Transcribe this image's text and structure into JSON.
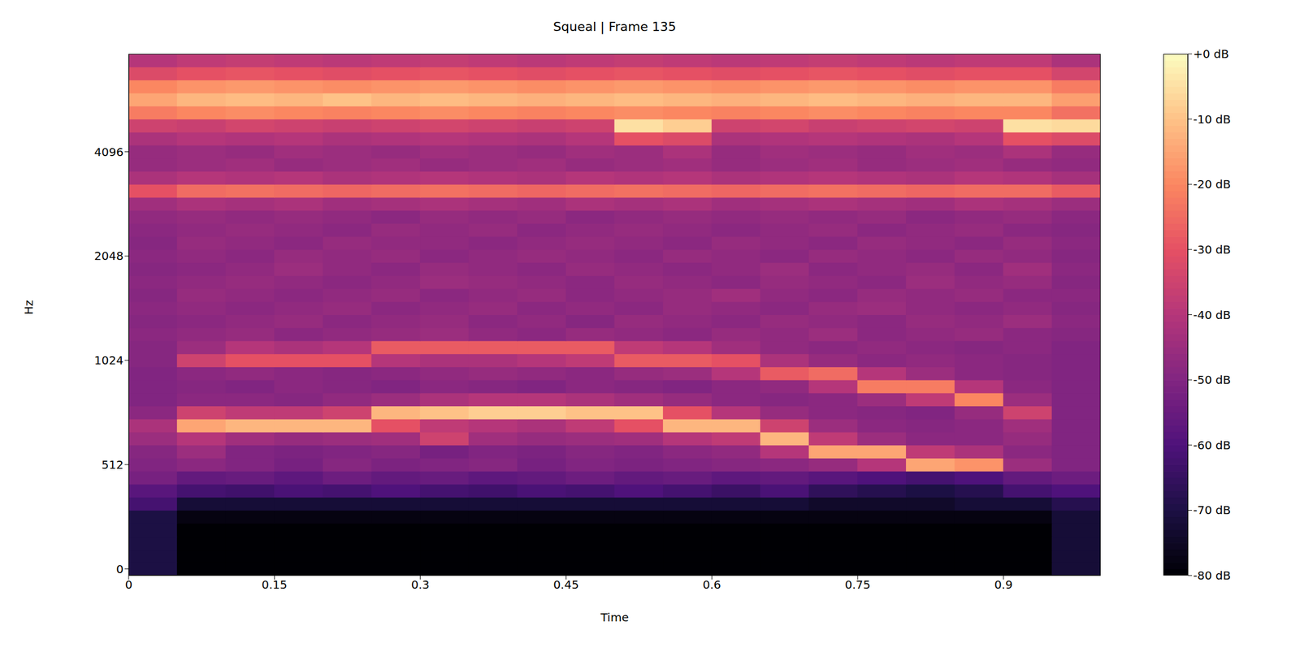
{
  "chart_data": {
    "type": "heatmap",
    "title": "Squeal | Frame 135",
    "x_label": "Time",
    "y_label": "Hz",
    "x": [
      0.025,
      0.075,
      0.125,
      0.175,
      0.225,
      0.275,
      0.325,
      0.375,
      0.425,
      0.475,
      0.525,
      0.575,
      0.625,
      0.675,
      0.725,
      0.775,
      0.825,
      0.875,
      0.925,
      0.975
    ],
    "xlim": [
      0,
      1.0
    ],
    "xticks": [
      0,
      0.15,
      0.3,
      0.45,
      0.6,
      0.75,
      0.9
    ],
    "y_categories": [
      "0",
      null,
      null,
      null,
      null,
      null,
      null,
      null,
      "512",
      null,
      null,
      null,
      null,
      null,
      null,
      null,
      "1024",
      null,
      null,
      null,
      null,
      null,
      null,
      null,
      "2048",
      null,
      null,
      null,
      null,
      null,
      null,
      null,
      "4096",
      null,
      null,
      null,
      null,
      null,
      null,
      null
    ],
    "cells": [
      [
        -70,
        -80,
        -80,
        -80,
        -80,
        -80,
        -80,
        -80,
        -80,
        -80,
        -80,
        -80,
        -80,
        -80,
        -80,
        -80,
        -80,
        -80,
        -80,
        -72
      ],
      [
        -70,
        -80,
        -80,
        -80,
        -80,
        -80,
        -80,
        -80,
        -80,
        -80,
        -80,
        -80,
        -80,
        -80,
        -80,
        -80,
        -80,
        -80,
        -80,
        -72
      ],
      [
        -70,
        -80,
        -80,
        -80,
        -80,
        -80,
        -80,
        -80,
        -80,
        -80,
        -80,
        -80,
        -80,
        -80,
        -80,
        -80,
        -80,
        -80,
        -80,
        -72
      ],
      [
        -70,
        -80,
        -80,
        -80,
        -80,
        -80,
        -80,
        -80,
        -80,
        -80,
        -80,
        -80,
        -80,
        -80,
        -80,
        -80,
        -80,
        -80,
        -80,
        -72
      ],
      [
        -70,
        -78,
        -78,
        -78,
        -78,
        -78,
        -78,
        -78,
        -78,
        -78,
        -78,
        -78,
        -78,
        -78,
        -78,
        -78,
        -78,
        -78,
        -78,
        -72
      ],
      [
        -62,
        -72,
        -72,
        -72,
        -72,
        -72,
        -72,
        -72,
        -72,
        -72,
        -72,
        -72,
        -72,
        -72,
        -74,
        -74,
        -74,
        -72,
        -72,
        -68
      ],
      [
        -58,
        -62,
        -63,
        -61,
        -62,
        -60,
        -62,
        -63,
        -61,
        -62,
        -60,
        -62,
        -64,
        -61,
        -66,
        -68,
        -70,
        -68,
        -62,
        -60
      ],
      [
        -52,
        -56,
        -55,
        -57,
        -54,
        -56,
        -55,
        -57,
        -56,
        -54,
        -56,
        -55,
        -57,
        -56,
        -58,
        -60,
        -62,
        -60,
        -56,
        -54
      ],
      [
        -50,
        -48,
        -50,
        -52,
        -49,
        -51,
        -50,
        -49,
        -52,
        -50,
        -51,
        -50,
        -49,
        -48,
        -46,
        -40,
        -15,
        -18,
        -45,
        -50
      ],
      [
        -49,
        -45,
        -50,
        -51,
        -50,
        -49,
        -52,
        -50,
        -51,
        -49,
        -50,
        -48,
        -47,
        -40,
        -15,
        -15,
        -38,
        -42,
        -48,
        -50
      ],
      [
        -45,
        -40,
        -44,
        -46,
        -45,
        -44,
        -35,
        -44,
        -46,
        -45,
        -44,
        -40,
        -38,
        -12,
        -38,
        -45,
        -48,
        -48,
        -46,
        -50
      ],
      [
        -42,
        -15,
        -12,
        -12,
        -12,
        -30,
        -38,
        -40,
        -42,
        -38,
        -30,
        -12,
        -12,
        -35,
        -45,
        -48,
        -49,
        -48,
        -44,
        -50
      ],
      [
        -48,
        -35,
        -38,
        -38,
        -35,
        -12,
        -10,
        -8,
        -8,
        -10,
        -10,
        -30,
        -40,
        -46,
        -48,
        -49,
        -50,
        -46,
        -35,
        -50
      ],
      [
        -50,
        -48,
        -48,
        -49,
        -47,
        -45,
        -42,
        -40,
        -40,
        -42,
        -44,
        -46,
        -48,
        -49,
        -48,
        -45,
        -38,
        -20,
        -45,
        -50
      ],
      [
        -50,
        -49,
        -50,
        -48,
        -49,
        -50,
        -48,
        -49,
        -50,
        -48,
        -49,
        -50,
        -48,
        -47,
        -40,
        -22,
        -22,
        -40,
        -48,
        -50
      ],
      [
        -50,
        -48,
        -47,
        -48,
        -49,
        -48,
        -47,
        -46,
        -47,
        -48,
        -46,
        -45,
        -40,
        -28,
        -25,
        -40,
        -45,
        -48,
        -49,
        -50
      ],
      [
        -49,
        -35,
        -30,
        -30,
        -30,
        -40,
        -42,
        -42,
        -40,
        -38,
        -28,
        -28,
        -30,
        -42,
        -46,
        -48,
        -47,
        -48,
        -49,
        -50
      ],
      [
        -49,
        -45,
        -40,
        -42,
        -40,
        -28,
        -28,
        -28,
        -28,
        -28,
        -38,
        -40,
        -44,
        -47,
        -48,
        -47,
        -48,
        -49,
        -48,
        -50
      ],
      [
        -48,
        -47,
        -46,
        -48,
        -47,
        -46,
        -45,
        -47,
        -48,
        -46,
        -47,
        -48,
        -46,
        -47,
        -45,
        -48,
        -47,
        -46,
        -48,
        -49
      ],
      [
        -49,
        -48,
        -47,
        -46,
        -48,
        -47,
        -46,
        -48,
        -47,
        -49,
        -46,
        -47,
        -48,
        -46,
        -47,
        -48,
        -46,
        -47,
        -45,
        -48
      ],
      [
        -48,
        -47,
        -48,
        -47,
        -46,
        -48,
        -47,
        -46,
        -48,
        -47,
        -48,
        -46,
        -47,
        -48,
        -46,
        -45,
        -47,
        -48,
        -47,
        -49
      ],
      [
        -49,
        -46,
        -47,
        -48,
        -47,
        -46,
        -48,
        -47,
        -46,
        -48,
        -47,
        -46,
        -44,
        -47,
        -48,
        -46,
        -47,
        -46,
        -48,
        -48
      ],
      [
        -48,
        -47,
        -46,
        -47,
        -48,
        -47,
        -45,
        -46,
        -47,
        -48,
        -46,
        -47,
        -48,
        -46,
        -47,
        -48,
        -45,
        -47,
        -46,
        -49
      ],
      [
        -49,
        -48,
        -47,
        -45,
        -47,
        -48,
        -46,
        -47,
        -48,
        -46,
        -47,
        -48,
        -47,
        -45,
        -48,
        -47,
        -46,
        -48,
        -44,
        -48
      ],
      [
        -48,
        -47,
        -48,
        -46,
        -47,
        -46,
        -48,
        -47,
        -46,
        -47,
        -48,
        -46,
        -47,
        -48,
        -46,
        -47,
        -48,
        -46,
        -47,
        -49
      ],
      [
        -49,
        -46,
        -47,
        -48,
        -46,
        -47,
        -47,
        -48,
        -47,
        -46,
        -47,
        -48,
        -46,
        -47,
        -48,
        -46,
        -47,
        -48,
        -46,
        -48
      ],
      [
        -48,
        -47,
        -46,
        -47,
        -48,
        -46,
        -47,
        -46,
        -48,
        -47,
        -46,
        -47,
        -48,
        -47,
        -46,
        -48,
        -47,
        -46,
        -48,
        -49
      ],
      [
        -47,
        -46,
        -47,
        -46,
        -47,
        -48,
        -46,
        -47,
        -46,
        -48,
        -47,
        -46,
        -47,
        -46,
        -47,
        -46,
        -48,
        -47,
        -46,
        -48
      ],
      [
        -44,
        -42,
        -43,
        -42,
        -44,
        -43,
        -42,
        -43,
        -44,
        -42,
        -43,
        -42,
        -44,
        -43,
        -42,
        -43,
        -44,
        -42,
        -43,
        -45
      ],
      [
        -30,
        -25,
        -24,
        -25,
        -26,
        -25,
        -24,
        -25,
        -26,
        -25,
        -24,
        -25,
        -26,
        -25,
        -24,
        -25,
        -26,
        -25,
        -25,
        -28
      ],
      [
        -42,
        -40,
        -41,
        -40,
        -42,
        -41,
        -40,
        -41,
        -42,
        -40,
        -41,
        -40,
        -42,
        -41,
        -40,
        -41,
        -42,
        -40,
        -41,
        -43
      ],
      [
        -46,
        -45,
        -44,
        -46,
        -45,
        -44,
        -46,
        -45,
        -44,
        -46,
        -45,
        -44,
        -46,
        -45,
        -44,
        -46,
        -45,
        -44,
        -46,
        -47
      ],
      [
        -46,
        -45,
        -46,
        -44,
        -45,
        -46,
        -44,
        -45,
        -46,
        -44,
        -45,
        -42,
        -46,
        -44,
        -45,
        -46,
        -44,
        -45,
        -42,
        -46
      ],
      [
        -42,
        -40,
        -41,
        -40,
        -42,
        -41,
        -40,
        -41,
        -42,
        -40,
        -30,
        -32,
        -42,
        -41,
        -40,
        -41,
        -42,
        -40,
        -30,
        -32
      ],
      [
        -35,
        -36,
        -34,
        -35,
        -36,
        -35,
        -34,
        -35,
        -36,
        -35,
        -5,
        -8,
        -35,
        -34,
        -36,
        -35,
        -34,
        -35,
        -5,
        -6
      ],
      [
        -22,
        -20,
        -19,
        -20,
        -21,
        -20,
        -19,
        -20,
        -21,
        -20,
        -19,
        -20,
        -21,
        -20,
        -19,
        -20,
        -21,
        -20,
        -20,
        -24
      ],
      [
        -15,
        -12,
        -11,
        -12,
        -10,
        -12,
        -11,
        -12,
        -13,
        -12,
        -11,
        -12,
        -13,
        -12,
        -11,
        -12,
        -13,
        -12,
        -12,
        -16
      ],
      [
        -20,
        -18,
        -17,
        -18,
        -19,
        -18,
        -17,
        -18,
        -19,
        -18,
        -17,
        -18,
        -19,
        -18,
        -17,
        -18,
        -19,
        -18,
        -18,
        -22
      ],
      [
        -32,
        -30,
        -29,
        -30,
        -31,
        -30,
        -29,
        -30,
        -31,
        -30,
        -29,
        -30,
        -31,
        -30,
        -29,
        -30,
        -31,
        -30,
        -30,
        -34
      ],
      [
        -40,
        -38,
        -37,
        -38,
        -39,
        -38,
        -37,
        -38,
        -39,
        -38,
        -37,
        -38,
        -39,
        -38,
        -37,
        -38,
        -39,
        -38,
        -38,
        -42
      ]
    ],
    "colorbar": {
      "range": [
        -80,
        0
      ],
      "ticks": [
        {
          "value": 0,
          "label": "+0 dB"
        },
        {
          "value": -10,
          "label": "-10 dB"
        },
        {
          "value": -20,
          "label": "-20 dB"
        },
        {
          "value": -30,
          "label": "-30 dB"
        },
        {
          "value": -40,
          "label": "-40 dB"
        },
        {
          "value": -50,
          "label": "-50 dB"
        },
        {
          "value": -60,
          "label": "-60 dB"
        },
        {
          "value": -70,
          "label": "-70 dB"
        },
        {
          "value": -80,
          "label": "-80 dB"
        }
      ]
    }
  }
}
